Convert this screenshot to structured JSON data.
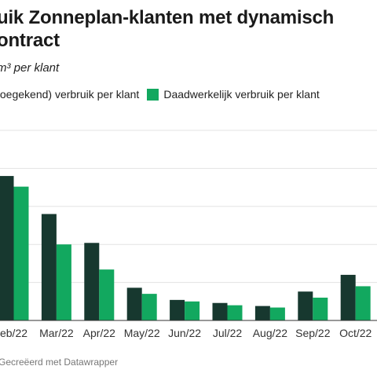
{
  "chart_data": {
    "type": "bar",
    "title": "uik Zonneplan-klanten met dynamisch ontract",
    "title_lines": [
      "uik Zonneplan-klanten met dynamisch",
      "ontract"
    ],
    "subtitle": "m³ per klant",
    "categories": [
      "eb/22",
      "Mar/22",
      "Apr/22",
      "May/22",
      "Jun/22",
      "Jul/22",
      "Aug/22",
      "Sep/22",
      "Oct/22"
    ],
    "series": [
      {
        "name": "toegekend) verbruik per klant",
        "color": "#17382f",
        "values": [
          190,
          140,
          102,
          43,
          27,
          23,
          19,
          38,
          60
        ]
      },
      {
        "name": "Daadwerkelijk verbruik per klant",
        "color": "#12a85f",
        "values": [
          176,
          100,
          67,
          35,
          25,
          20,
          17,
          30,
          45
        ]
      }
    ],
    "ylim": [
      0,
      250
    ],
    "grid": true,
    "legend_position": "top-left",
    "credit": "Gecreëerd met Datawrapper"
  }
}
